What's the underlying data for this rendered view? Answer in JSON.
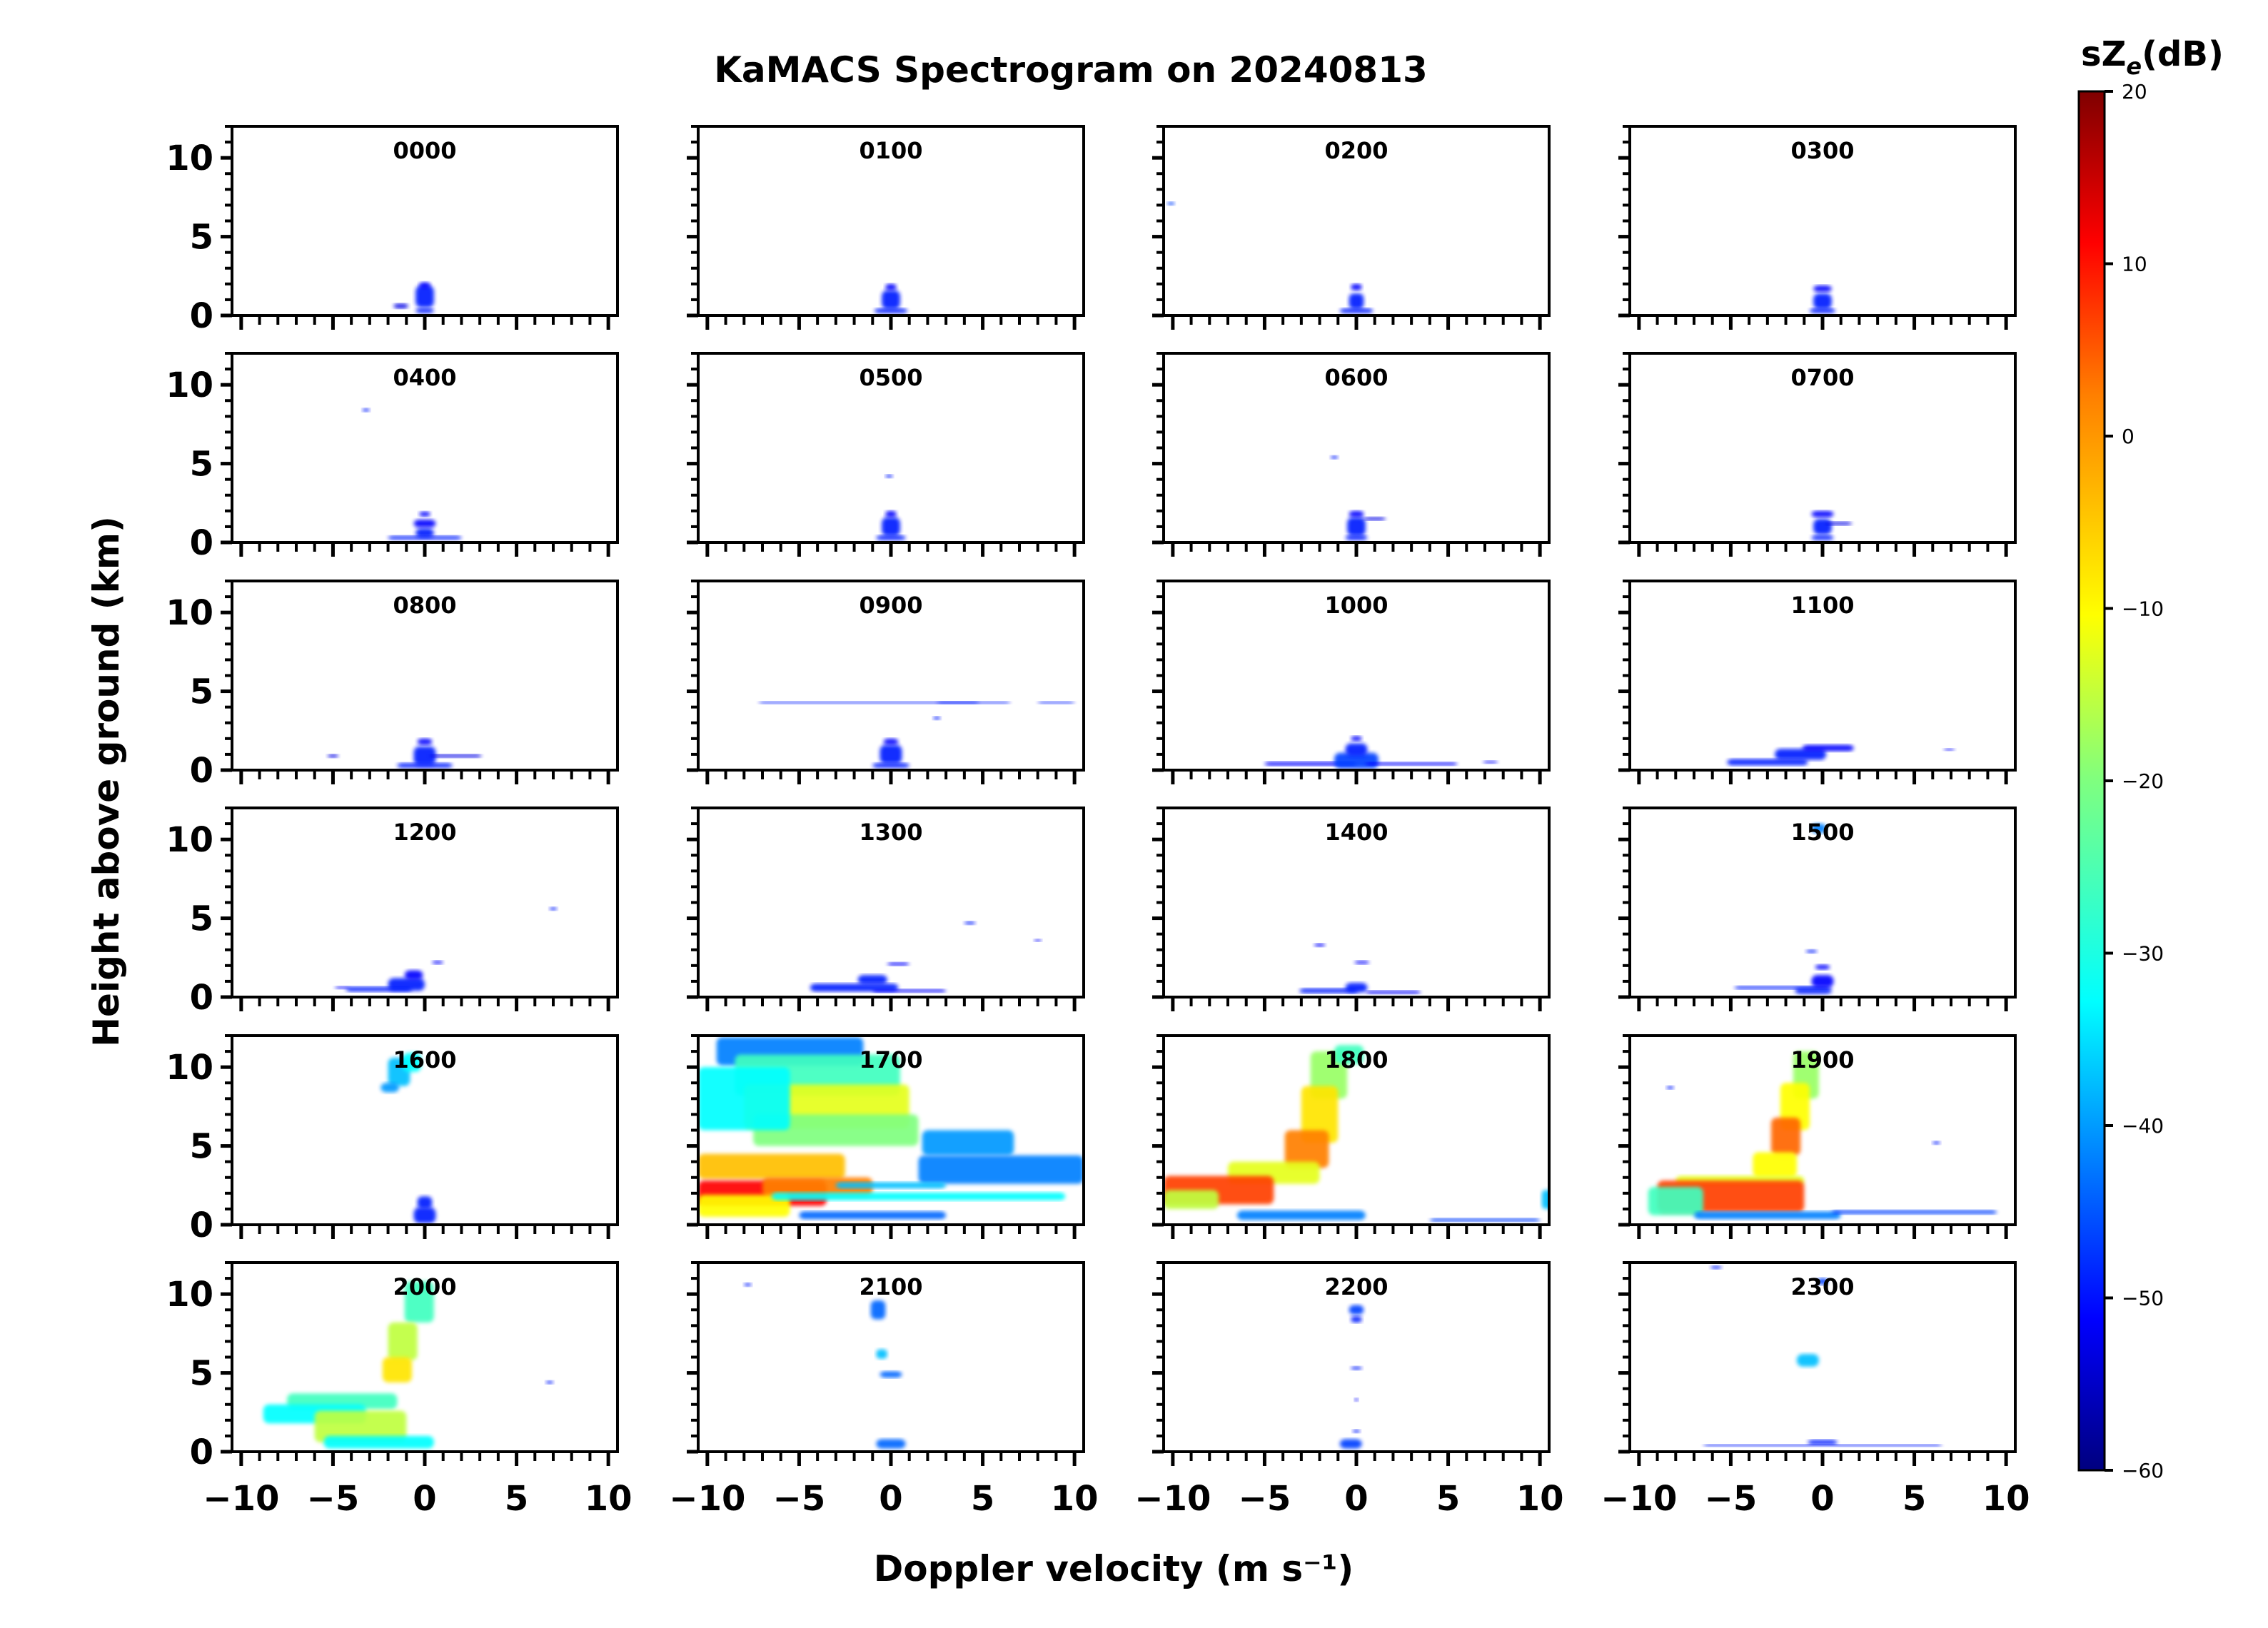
{
  "chart_data": {
    "type": "heatmap",
    "title": "KaMACS Spectrogram on 20240813",
    "xlabel": "Doppler velocity (m s⁻¹)",
    "ylabel": "Height above ground (km)",
    "xlim": [
      -10.5,
      10.5
    ],
    "ylim": [
      0,
      12
    ],
    "x_ticks": [
      "−10",
      "−5",
      "0",
      "5",
      "10"
    ],
    "x_tick_values": [
      -10,
      -5,
      0,
      5,
      10
    ],
    "y_ticks": [
      "0",
      "5",
      "10"
    ],
    "y_tick_values": [
      0,
      5,
      10
    ],
    "colorbar": {
      "label": "sZe(dB)",
      "label_main": "sZ",
      "label_sub": "e",
      "label_unit": "(dB)",
      "range": [
        -60,
        20
      ],
      "ticks": [
        "20",
        "10",
        "0",
        "−10",
        "−20",
        "−30",
        "−40",
        "−50",
        "−60"
      ],
      "tick_values": [
        20,
        10,
        0,
        -10,
        -20,
        -30,
        -40,
        -50,
        -60
      ],
      "colormap": "jet",
      "colors": [
        "#00007f",
        "#0000ff",
        "#007fff",
        "#00ffff",
        "#7fff7f",
        "#ffff00",
        "#ff7f00",
        "#ff0000",
        "#7f0000"
      ]
    },
    "panels": [
      {
        "label": "0000",
        "blobs": [
          [
            0,
            0.3,
            0.5,
            0.15,
            -48
          ],
          [
            0,
            1.2,
            0.5,
            0.7,
            -48
          ],
          [
            0,
            1.9,
            0.3,
            0.2,
            -50
          ],
          [
            -1.3,
            0.6,
            0.4,
            0.15,
            -52
          ]
        ]
      },
      {
        "label": "0100",
        "blobs": [
          [
            0,
            0.3,
            0.9,
            0.15,
            -48
          ],
          [
            0,
            1.0,
            0.5,
            0.6,
            -48
          ],
          [
            0,
            1.8,
            0.3,
            0.2,
            -50
          ]
        ]
      },
      {
        "label": "0200",
        "blobs": [
          [
            0,
            0.3,
            0.9,
            0.15,
            -48
          ],
          [
            0,
            0.9,
            0.4,
            0.5,
            -48
          ],
          [
            0,
            1.8,
            0.3,
            0.2,
            -50
          ],
          [
            -10.1,
            7.1,
            0.2,
            0.1,
            -45
          ]
        ]
      },
      {
        "label": "0300",
        "blobs": [
          [
            0,
            0.3,
            0.7,
            0.15,
            -48
          ],
          [
            0,
            0.9,
            0.5,
            0.5,
            -48
          ],
          [
            0,
            1.7,
            0.5,
            0.2,
            -50
          ]
        ]
      },
      {
        "label": "0400",
        "blobs": [
          [
            0,
            0.3,
            2.0,
            0.12,
            -48
          ],
          [
            0,
            0.6,
            0.5,
            0.3,
            -48
          ],
          [
            0,
            1.2,
            0.6,
            0.25,
            -50
          ],
          [
            0,
            1.8,
            0.3,
            0.15,
            -50
          ],
          [
            -3.2,
            8.4,
            0.2,
            0.1,
            -48
          ]
        ]
      },
      {
        "label": "0500",
        "blobs": [
          [
            0,
            0.3,
            0.8,
            0.15,
            -48
          ],
          [
            0,
            1.0,
            0.5,
            0.6,
            -48
          ],
          [
            0,
            1.8,
            0.3,
            0.2,
            -50
          ],
          [
            -0.1,
            4.2,
            0.2,
            0.1,
            -48
          ]
        ]
      },
      {
        "label": "0600",
        "blobs": [
          [
            0,
            0.3,
            0.6,
            0.15,
            -48
          ],
          [
            0,
            1.0,
            0.5,
            0.6,
            -48
          ],
          [
            0,
            1.8,
            0.4,
            0.2,
            -50
          ],
          [
            1.0,
            1.5,
            0.6,
            0.1,
            -52
          ],
          [
            -1.2,
            5.4,
            0.2,
            0.1,
            -48
          ]
        ]
      },
      {
        "label": "0700",
        "blobs": [
          [
            0,
            0.3,
            0.6,
            0.15,
            -48
          ],
          [
            0,
            1.0,
            0.5,
            0.5,
            -48
          ],
          [
            0,
            1.8,
            0.6,
            0.2,
            -50
          ],
          [
            0.9,
            1.2,
            0.7,
            0.1,
            -52
          ]
        ]
      },
      {
        "label": "0800",
        "blobs": [
          [
            0,
            0.3,
            1.5,
            0.15,
            -48
          ],
          [
            0,
            0.9,
            0.6,
            0.6,
            -48
          ],
          [
            0,
            1.8,
            0.4,
            0.2,
            -50
          ],
          [
            1.7,
            0.9,
            1.4,
            0.1,
            -52
          ],
          [
            -5.0,
            0.9,
            0.3,
            0.1,
            -52
          ]
        ]
      },
      {
        "label": "0900",
        "blobs": [
          [
            0,
            0.3,
            1.0,
            0.15,
            -48
          ],
          [
            0,
            1.0,
            0.6,
            0.6,
            -48
          ],
          [
            0,
            1.8,
            0.4,
            0.2,
            -50
          ],
          [
            -1.2,
            4.3,
            6.0,
            0.05,
            -48
          ],
          [
            4.5,
            4.3,
            2.0,
            0.05,
            -48
          ],
          [
            9.0,
            4.3,
            1.0,
            0.05,
            -48
          ],
          [
            2.5,
            3.3,
            0.2,
            0.1,
            -48
          ]
        ]
      },
      {
        "label": "1000",
        "blobs": [
          [
            -2.5,
            0.4,
            2.5,
            0.12,
            -50
          ],
          [
            0,
            0.6,
            1.2,
            0.5,
            -45
          ],
          [
            0,
            1.3,
            0.6,
            0.4,
            -48
          ],
          [
            0,
            2.0,
            0.3,
            0.15,
            -50
          ],
          [
            3.0,
            0.4,
            2.5,
            0.1,
            -50
          ],
          [
            7.3,
            0.5,
            0.4,
            0.08,
            -50
          ]
        ]
      },
      {
        "label": "1100",
        "blobs": [
          [
            -3.0,
            0.5,
            2.2,
            0.2,
            -48
          ],
          [
            -1.2,
            1.0,
            1.4,
            0.35,
            -48
          ],
          [
            0.3,
            1.4,
            1.4,
            0.2,
            -50
          ],
          [
            6.9,
            1.3,
            0.3,
            0.07,
            -50
          ]
        ]
      },
      {
        "label": "1200",
        "blobs": [
          [
            -2.5,
            0.5,
            1.8,
            0.15,
            -48
          ],
          [
            -1.0,
            0.8,
            1.0,
            0.4,
            -48
          ],
          [
            -0.6,
            1.4,
            0.5,
            0.3,
            -50
          ],
          [
            0.7,
            2.2,
            0.3,
            0.1,
            -50
          ],
          [
            -4.5,
            0.6,
            0.4,
            0.08,
            -50
          ],
          [
            7.0,
            5.6,
            0.2,
            0.1,
            -48
          ]
        ]
      },
      {
        "label": "1300",
        "blobs": [
          [
            -2.0,
            0.6,
            2.4,
            0.25,
            -48
          ],
          [
            -1.0,
            1.1,
            0.8,
            0.3,
            -48
          ],
          [
            1.0,
            0.4,
            2.0,
            0.1,
            -50
          ],
          [
            0.4,
            2.1,
            0.6,
            0.1,
            -50
          ],
          [
            4.3,
            4.7,
            0.3,
            0.1,
            -48
          ],
          [
            8.0,
            3.6,
            0.2,
            0.08,
            -50
          ]
        ]
      },
      {
        "label": "1400",
        "blobs": [
          [
            -1.5,
            0.4,
            1.6,
            0.15,
            -48
          ],
          [
            0,
            0.6,
            0.6,
            0.3,
            -48
          ],
          [
            2.0,
            0.3,
            1.5,
            0.1,
            -50
          ],
          [
            0.3,
            2.2,
            0.4,
            0.1,
            -50
          ],
          [
            -2.0,
            3.3,
            0.3,
            0.1,
            -50
          ]
        ]
      },
      {
        "label": "1500",
        "blobs": [
          [
            -2.2,
            0.6,
            2.6,
            0.1,
            -48
          ],
          [
            -0.5,
            0.4,
            1.0,
            0.2,
            -48
          ],
          [
            0,
            1.0,
            0.6,
            0.4,
            -50
          ],
          [
            0,
            1.9,
            0.4,
            0.15,
            -50
          ],
          [
            -0.6,
            2.9,
            0.3,
            0.1,
            -48
          ],
          [
            -0.2,
            10.7,
            0.4,
            0.3,
            -40
          ]
        ]
      },
      {
        "label": "1600",
        "blobs": [
          [
            0,
            0.6,
            0.6,
            0.5,
            -48
          ],
          [
            0,
            1.4,
            0.4,
            0.4,
            -48
          ],
          [
            -1.4,
            9.7,
            0.6,
            0.9,
            -35
          ],
          [
            -0.7,
            10.3,
            0.5,
            0.6,
            -30
          ],
          [
            -1.9,
            8.7,
            0.5,
            0.3,
            -38
          ]
        ]
      },
      {
        "label": "1700",
        "blobs": [
          [
            -5.5,
            11.0,
            4.0,
            0.9,
            -40
          ],
          [
            -4.0,
            9.5,
            4.5,
            1.3,
            -25
          ],
          [
            -3.5,
            7.5,
            4.5,
            1.4,
            -12
          ],
          [
            -3.0,
            6.0,
            4.5,
            1.0,
            -20
          ],
          [
            -8.0,
            8.0,
            2.5,
            2.0,
            -30
          ],
          [
            4.2,
            5.2,
            2.5,
            0.8,
            -38
          ],
          [
            6.0,
            3.5,
            4.5,
            0.9,
            -40
          ],
          [
            -6.5,
            3.7,
            4.0,
            0.8,
            -5
          ],
          [
            -7.0,
            2.0,
            3.5,
            0.8,
            10
          ],
          [
            -4.0,
            2.4,
            3.0,
            0.6,
            0
          ],
          [
            -8.0,
            1.2,
            2.5,
            0.7,
            -10
          ],
          [
            1.5,
            1.8,
            8.0,
            0.25,
            -30
          ],
          [
            0,
            2.5,
            3.0,
            0.2,
            -35
          ],
          [
            -1.0,
            0.6,
            4.0,
            0.25,
            -42
          ]
        ]
      },
      {
        "label": "1800",
        "blobs": [
          [
            -1.5,
            9.5,
            1.0,
            1.5,
            -18
          ],
          [
            -0.4,
            10.8,
            0.8,
            0.6,
            -25
          ],
          [
            -2.0,
            7.0,
            1.0,
            1.8,
            -8
          ],
          [
            -2.7,
            4.8,
            1.2,
            1.2,
            0
          ],
          [
            -4.5,
            3.3,
            2.5,
            0.7,
            -12
          ],
          [
            -7.5,
            2.2,
            3.0,
            0.9,
            5
          ],
          [
            -9.0,
            1.6,
            1.5,
            0.6,
            -15
          ],
          [
            -3.0,
            0.6,
            3.5,
            0.3,
            -40
          ],
          [
            7.0,
            0.3,
            3.0,
            0.1,
            -45
          ],
          [
            10.4,
            1.6,
            0.3,
            0.6,
            -35
          ]
        ]
      },
      {
        "label": "1900",
        "blobs": [
          [
            -0.9,
            9.5,
            0.7,
            1.5,
            -18
          ],
          [
            -1.5,
            7.5,
            0.8,
            1.5,
            -10
          ],
          [
            -2.0,
            5.6,
            0.8,
            1.2,
            2
          ],
          [
            -2.6,
            3.8,
            1.2,
            0.8,
            -10
          ],
          [
            -4.5,
            2.8,
            3.5,
            0.3,
            -12
          ],
          [
            -5.0,
            1.8,
            4.0,
            1.0,
            5
          ],
          [
            -8.0,
            1.5,
            1.5,
            0.9,
            -25
          ],
          [
            -3.0,
            0.6,
            4.0,
            0.25,
            -40
          ],
          [
            5.0,
            0.8,
            4.5,
            0.12,
            -45
          ],
          [
            -8.3,
            8.7,
            0.2,
            0.1,
            -48
          ],
          [
            6.2,
            5.2,
            0.2,
            0.1,
            -48
          ]
        ]
      },
      {
        "label": "2000",
        "blobs": [
          [
            -0.3,
            9.5,
            0.8,
            1.3,
            -25
          ],
          [
            -1.2,
            7.0,
            0.8,
            1.2,
            -15
          ],
          [
            -1.5,
            5.2,
            0.8,
            0.8,
            -8
          ],
          [
            -4.5,
            3.2,
            3.0,
            0.5,
            -25
          ],
          [
            -6.0,
            2.4,
            2.8,
            0.6,
            -30
          ],
          [
            -3.5,
            1.6,
            2.5,
            1.0,
            -15
          ],
          [
            -2.5,
            0.6,
            3.0,
            0.4,
            -30
          ],
          [
            6.8,
            4.4,
            0.2,
            0.1,
            -48
          ]
        ]
      },
      {
        "label": "2100",
        "blobs": [
          [
            -0.7,
            9.0,
            0.4,
            0.6,
            -42
          ],
          [
            -0.5,
            6.2,
            0.3,
            0.3,
            -35
          ],
          [
            0,
            4.9,
            0.6,
            0.2,
            -42
          ],
          [
            0,
            0.5,
            0.8,
            0.3,
            -42
          ],
          [
            -7.8,
            10.6,
            0.2,
            0.1,
            -48
          ]
        ]
      },
      {
        "label": "2200",
        "blobs": [
          [
            0,
            9.0,
            0.4,
            0.3,
            -45
          ],
          [
            0,
            8.4,
            0.3,
            0.2,
            -48
          ],
          [
            0,
            5.3,
            0.3,
            0.1,
            -48
          ],
          [
            0,
            1.3,
            0.2,
            0.1,
            -48
          ],
          [
            -0.3,
            0.5,
            0.6,
            0.3,
            -45
          ],
          [
            0,
            3.3,
            0.1,
            0.1,
            -50
          ]
        ]
      },
      {
        "label": "2300",
        "blobs": [
          [
            -0.8,
            5.8,
            0.6,
            0.4,
            -35
          ],
          [
            0,
            10.8,
            0.3,
            0.2,
            -45
          ],
          [
            -5.8,
            11.7,
            0.3,
            0.1,
            -48
          ],
          [
            0,
            0.6,
            0.8,
            0.15,
            -48
          ],
          [
            0,
            0.4,
            6.5,
            0.07,
            -48
          ]
        ]
      }
    ]
  }
}
